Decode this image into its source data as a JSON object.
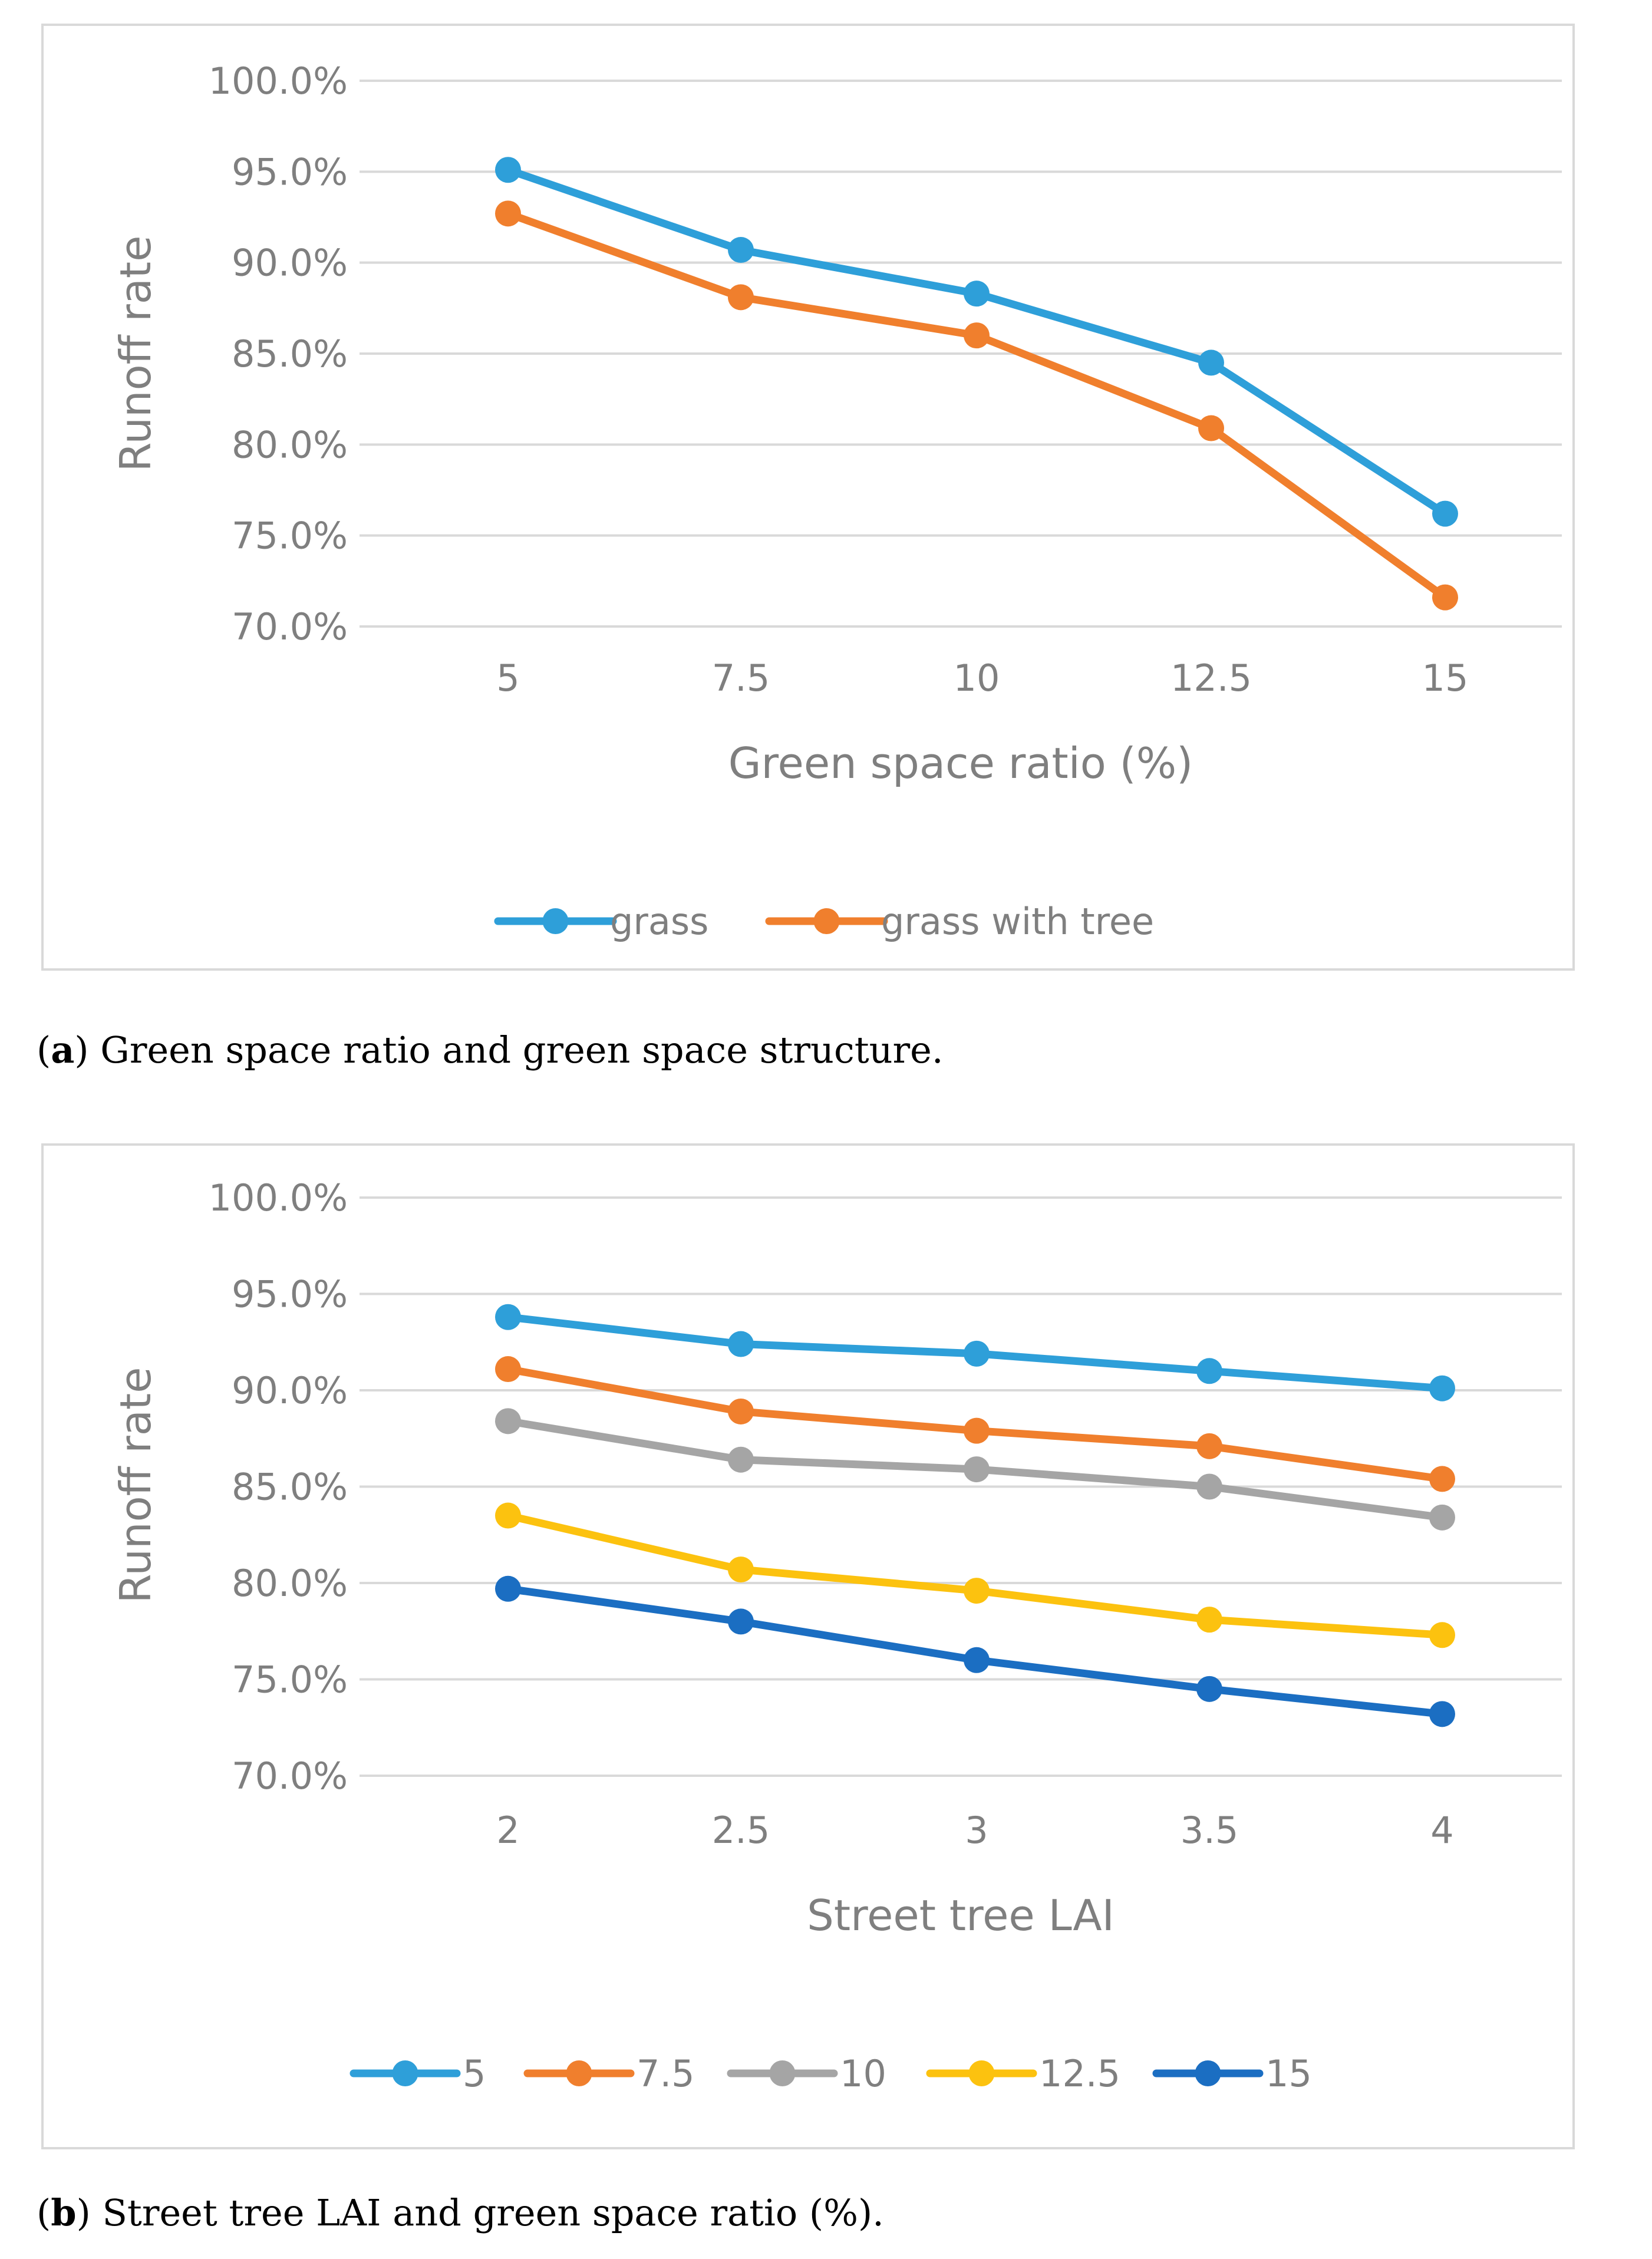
{
  "captions": {
    "a": {
      "letter": "a",
      "text": ") Green space ratio and green space structure."
    },
    "b": {
      "letter": "b",
      "text": ") Street tree LAI and green space ratio (%)."
    }
  },
  "chart_data": [
    {
      "type": "line",
      "title": "",
      "xlabel": "Green space ratio (%)",
      "ylabel": "Runoff rate",
      "categories": [
        "5",
        "7.5",
        "10",
        "12.5",
        "15"
      ],
      "ylim": [
        70,
        100
      ],
      "yticks": [
        "100.0%",
        "95.0%",
        "90.0%",
        "85.0%",
        "80.0%",
        "75.0%",
        "70.0%"
      ],
      "legend_position": "bottom",
      "series": [
        {
          "name": "grass",
          "color": "#2e9fd9",
          "values": [
            95.1,
            90.7,
            88.3,
            84.5,
            76.2
          ]
        },
        {
          "name": "grass with tree",
          "color": "#f07f2d",
          "values": [
            92.7,
            88.1,
            86.0,
            80.9,
            71.6
          ]
        }
      ]
    },
    {
      "type": "line",
      "title": "",
      "xlabel": "Street tree LAI",
      "ylabel": "Runoff rate",
      "categories": [
        "2",
        "2.5",
        "3",
        "3.5",
        "4"
      ],
      "ylim": [
        70,
        100
      ],
      "yticks": [
        "100.0%",
        "95.0%",
        "90.0%",
        "85.0%",
        "80.0%",
        "75.0%",
        "70.0%"
      ],
      "legend_position": "bottom",
      "series": [
        {
          "name": "5",
          "color": "#2e9fd9",
          "values": [
            93.8,
            92.4,
            91.9,
            91.0,
            90.1
          ]
        },
        {
          "name": "7.5",
          "color": "#f07f2d",
          "values": [
            91.1,
            88.9,
            87.9,
            87.1,
            85.4
          ]
        },
        {
          "name": "10",
          "color": "#a5a5a5",
          "values": [
            88.4,
            86.4,
            85.9,
            85.0,
            83.4
          ]
        },
        {
          "name": "12.5",
          "color": "#fcc20f",
          "values": [
            83.5,
            80.7,
            79.6,
            78.1,
            77.3
          ]
        },
        {
          "name": "15",
          "color": "#1b6ec2",
          "values": [
            79.7,
            78.0,
            76.0,
            74.5,
            73.2
          ]
        }
      ]
    }
  ]
}
